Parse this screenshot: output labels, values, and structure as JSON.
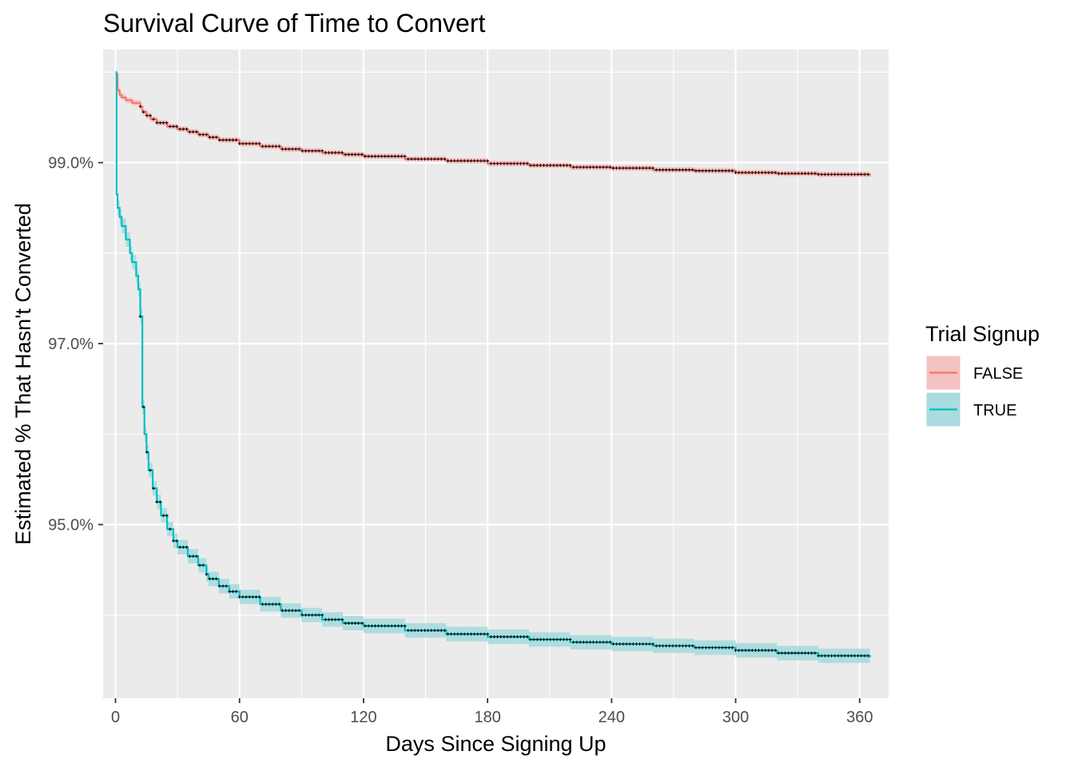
{
  "chart_data": {
    "type": "line",
    "title": "Survival Curve of Time to Convert",
    "xlabel": "Days Since Signing Up",
    "ylabel": "Estimated % That Hasn't Converted",
    "xlim": [
      -6,
      374
    ],
    "ylim": [
      93.08,
      100.25
    ],
    "x_ticks": [
      0,
      60,
      120,
      180,
      240,
      300,
      360
    ],
    "x_tick_labels": [
      "0",
      "60",
      "120",
      "180",
      "240",
      "300",
      "360"
    ],
    "y_ticks": [
      95,
      97,
      99
    ],
    "y_tick_labels": [
      "95.0%",
      "97.0%",
      "99.0%"
    ],
    "grid": true,
    "legend": {
      "title": "Trial Signup",
      "position": "right"
    },
    "series": [
      {
        "name": "FALSE",
        "color": "#F8766D",
        "fill": "#F4C2C0",
        "x": [
          0,
          1,
          2,
          3,
          5,
          8,
          12,
          13,
          15,
          17,
          20,
          25,
          30,
          35,
          40,
          45,
          50,
          60,
          70,
          80,
          90,
          100,
          110,
          120,
          140,
          160,
          180,
          200,
          220,
          240,
          260,
          280,
          300,
          320,
          340,
          365
        ],
        "y": [
          99.98,
          99.8,
          99.75,
          99.72,
          99.69,
          99.66,
          99.62,
          99.56,
          99.52,
          99.48,
          99.44,
          99.4,
          99.37,
          99.34,
          99.31,
          99.28,
          99.25,
          99.21,
          99.18,
          99.15,
          99.13,
          99.11,
          99.09,
          99.07,
          99.04,
          99.02,
          98.99,
          98.97,
          98.95,
          98.94,
          98.92,
          98.91,
          98.89,
          98.88,
          98.87,
          98.85
        ],
        "band_halfwidth": 0.03
      },
      {
        "name": "TRUE",
        "color": "#00BFC4",
        "fill": "#A9DCDE",
        "x": [
          0,
          0.5,
          1,
          2,
          3,
          5,
          7,
          8,
          10,
          11,
          12,
          13,
          14,
          15,
          16,
          18,
          20,
          22,
          25,
          28,
          30,
          35,
          40,
          44,
          45,
          50,
          55,
          60,
          70,
          80,
          90,
          100,
          110,
          120,
          140,
          160,
          180,
          200,
          220,
          240,
          260,
          280,
          300,
          320,
          340,
          365
        ],
        "y": [
          100.0,
          98.65,
          98.5,
          98.4,
          98.3,
          98.15,
          98.0,
          97.9,
          97.75,
          97.6,
          97.3,
          96.3,
          96.0,
          95.8,
          95.6,
          95.4,
          95.25,
          95.1,
          94.95,
          94.82,
          94.75,
          94.65,
          94.55,
          94.45,
          94.4,
          94.32,
          94.26,
          94.2,
          94.12,
          94.05,
          94.0,
          93.95,
          93.91,
          93.88,
          93.83,
          93.79,
          93.76,
          93.73,
          93.7,
          93.68,
          93.66,
          93.64,
          93.61,
          93.58,
          93.55,
          93.53
        ],
        "band_halfwidth": 0.08
      }
    ]
  }
}
